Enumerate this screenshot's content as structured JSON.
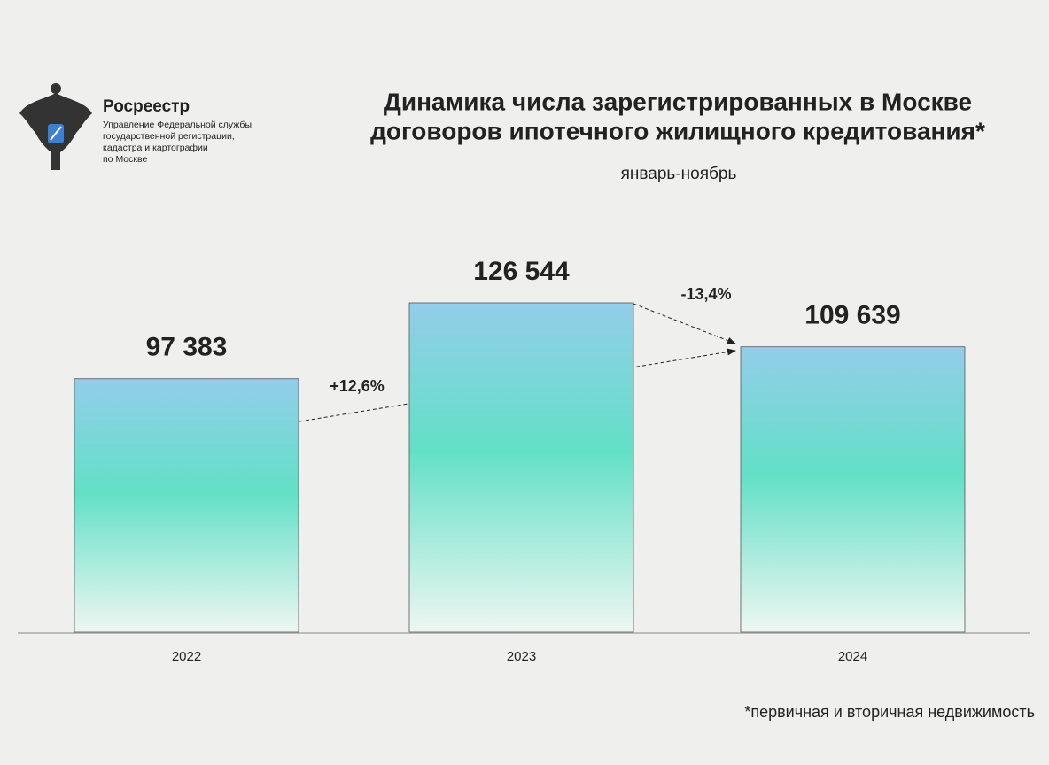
{
  "header": {
    "org": "Росреестр",
    "org_lines": [
      "Управление Федеральной службы",
      "государственной регистрации,",
      "кадастра и картографии",
      "по Москве"
    ]
  },
  "chart_data": {
    "type": "bar",
    "title": [
      "Динамика числа зарегистрированных в Москве",
      "договоров ипотечного жилищного кредитования*"
    ],
    "subtitle": "январь-ноябрь",
    "categories": [
      "2022",
      "2023",
      "2024"
    ],
    "values": [
      97383,
      126544,
      109639
    ],
    "value_labels": [
      "97 383",
      "126 544",
      "109 639"
    ],
    "annotations": [
      "+12,6%",
      "-13,4%"
    ],
    "note": "*первичная и вторичная недвижимость"
  }
}
